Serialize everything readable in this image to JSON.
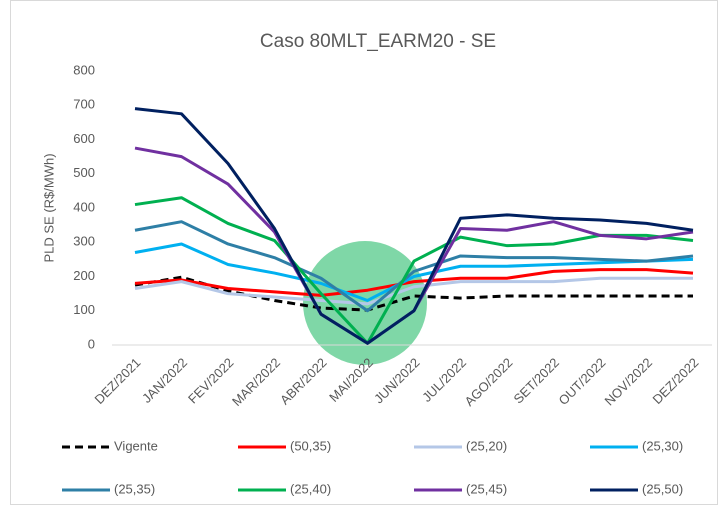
{
  "chart_data": {
    "type": "line",
    "title": "Caso 80MLT_EARM20 - SE",
    "y_label": "PLD SE (R$/MWh)",
    "categories": [
      "DEZ/2021",
      "JAN/2022",
      "FEV/2022",
      "MAR/2022",
      "ABR/2022",
      "MAI/2022",
      "JUN/2022",
      "JUL/2022",
      "AGO/2022",
      "SET/2022",
      "OUT/2022",
      "NOV/2022",
      "DEZ/2022"
    ],
    "ylim": [
      0,
      800
    ],
    "yticks": [
      0,
      100,
      200,
      300,
      400,
      500,
      600,
      700,
      800
    ],
    "grid": false,
    "legend": "bottom",
    "series": [
      {
        "name": "Vigente",
        "color": "#000000",
        "dashed": true,
        "values": [
          175,
          198,
          158,
          130,
          108,
          102,
          143,
          137,
          143,
          143,
          143,
          143,
          143
        ]
      },
      {
        "name": "(50,35)",
        "color": "#ff0000",
        "values": [
          180,
          190,
          165,
          155,
          145,
          160,
          185,
          195,
          195,
          215,
          220,
          220,
          210
        ]
      },
      {
        "name": "(25,20)",
        "color": "#b4c7e7",
        "values": [
          165,
          185,
          150,
          140,
          130,
          120,
          170,
          185,
          185,
          185,
          195,
          195,
          195
        ]
      },
      {
        "name": "(25,30)",
        "color": "#00b0f0",
        "values": [
          270,
          295,
          235,
          210,
          180,
          130,
          200,
          230,
          230,
          235,
          240,
          245,
          250
        ]
      },
      {
        "name": "(25,35)",
        "color": "#2e7fa6",
        "values": [
          335,
          360,
          295,
          255,
          195,
          100,
          215,
          260,
          255,
          255,
          250,
          245,
          260
        ]
      },
      {
        "name": "(25,40)",
        "color": "#00b050",
        "values": [
          410,
          430,
          355,
          305,
          150,
          5,
          245,
          315,
          290,
          295,
          320,
          320,
          305
        ]
      },
      {
        "name": "(25,45)",
        "color": "#7030a0",
        "values": [
          575,
          550,
          470,
          330,
          90,
          5,
          100,
          340,
          335,
          360,
          320,
          310,
          330
        ]
      },
      {
        "name": "(25,50)",
        "color": "#002060",
        "values": [
          690,
          675,
          530,
          340,
          90,
          5,
          100,
          370,
          380,
          370,
          365,
          355,
          335
        ]
      }
    ]
  }
}
